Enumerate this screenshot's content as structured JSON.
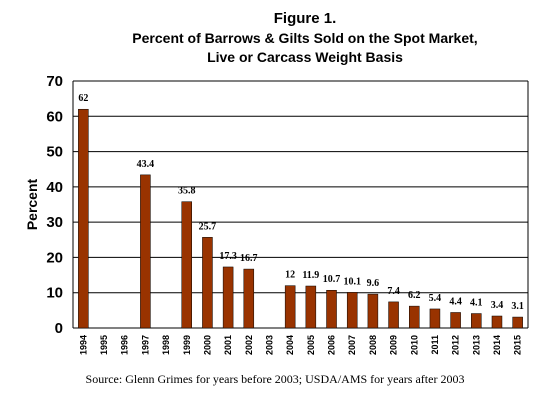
{
  "chart_data": {
    "type": "bar",
    "title": "Figure 1.",
    "subtitle_line1": "Percent of Barrows & Gilts Sold on the Spot Market,",
    "subtitle_line2": "Live or Carcass Weight Basis",
    "ylabel": "Percent",
    "xlabel": "",
    "ylim": [
      0,
      70
    ],
    "yticks": [
      0,
      10,
      20,
      30,
      40,
      50,
      60,
      70
    ],
    "grid": true,
    "legend": "none",
    "bar_color": "#993300",
    "categories": [
      "1994",
      "1995",
      "1996",
      "1997",
      "1998",
      "1999",
      "2000",
      "2001",
      "2002",
      "2003",
      "2004",
      "2005",
      "2006",
      "2007",
      "2008",
      "2009",
      "2010",
      "2011",
      "2012",
      "2013",
      "2014",
      "2015"
    ],
    "values": [
      62,
      null,
      null,
      43.4,
      null,
      35.8,
      25.7,
      17.3,
      16.7,
      null,
      12,
      11.9,
      10.7,
      10.1,
      9.6,
      7.4,
      6.2,
      5.4,
      4.4,
      4.1,
      3.4,
      3.1
    ],
    "labels": [
      "62",
      "",
      "",
      "43.4",
      "",
      "35.8",
      "25.7",
      "17.3",
      "16.7",
      "",
      "12",
      "11.9",
      "10.7",
      "10.1",
      "9.6",
      "7.4",
      "6.2",
      "5.4",
      "4.4",
      "4.1",
      "3.4",
      "3.1"
    ]
  },
  "source_note": "Source: Glenn Grimes for years before 2003; USDA/AMS for years after 2003"
}
